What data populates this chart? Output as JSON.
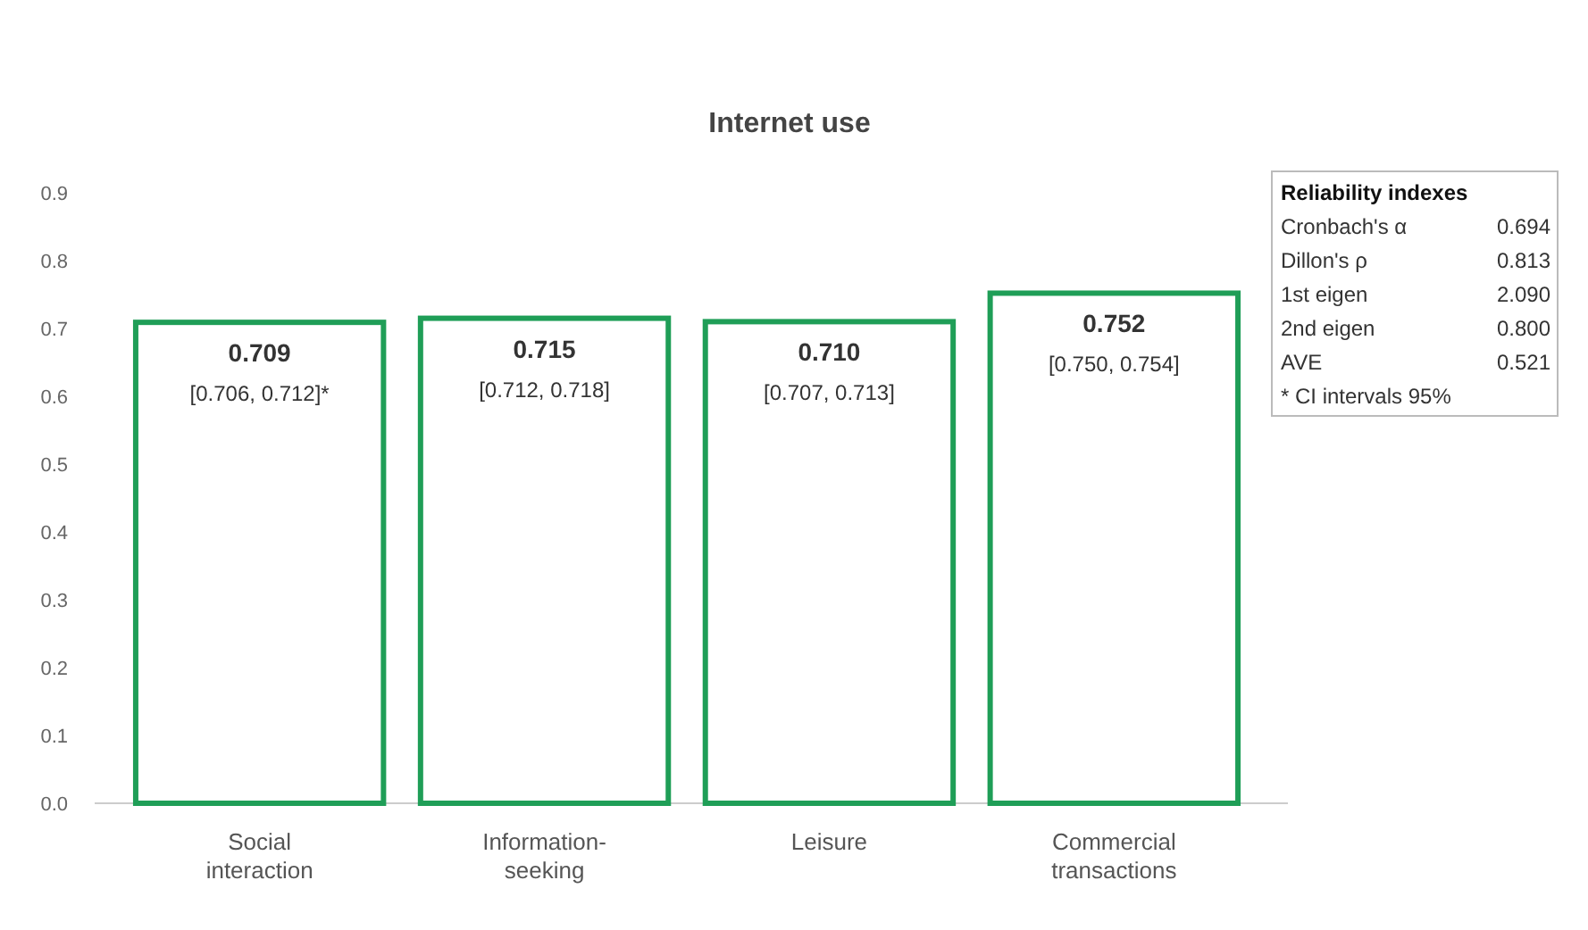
{
  "chart_data": {
    "type": "bar",
    "title": "Internet use",
    "categories": [
      "Social interaction",
      "Information-seeking",
      "Leisure",
      "Commercial transactions"
    ],
    "values": [
      0.709,
      0.715,
      0.71,
      0.752
    ],
    "color": "#1f9e57",
    "value_labels": [
      "0.709",
      "0.715",
      "0.710",
      "0.752"
    ],
    "ylim": [
      0,
      0.9
    ],
    "yticks": [
      {
        "value": 0,
        "label": "0.0"
      },
      0.1,
      0.2,
      0.3,
      0.4,
      0.5,
      0.6,
      0.7,
      0.8,
      0.9
    ],
    "grid": false,
    "annotations": [
      {
        "text": "[0.706, 0.712]*",
        "x": "Social interaction",
        "y": 0.709
      },
      {
        "text": "[0.712, 0.718]",
        "x": "Information-seeking",
        "y": 0.715
      },
      {
        "text": "[0.707, 0.713]",
        "x": "Leisure",
        "y": 0.71
      },
      {
        "text": "[0.750, 0.754]",
        "x": "Commercial transactions",
        "y": 0.752
      },
      "Reliability indexes",
      "Cronbach's α 0.694",
      "Dillon's ρ 0.813",
      "1st eigen 2.090",
      "2nd eigen 0.800",
      "AVE 0.521",
      "* CI intervals 95%"
    ]
  }
}
